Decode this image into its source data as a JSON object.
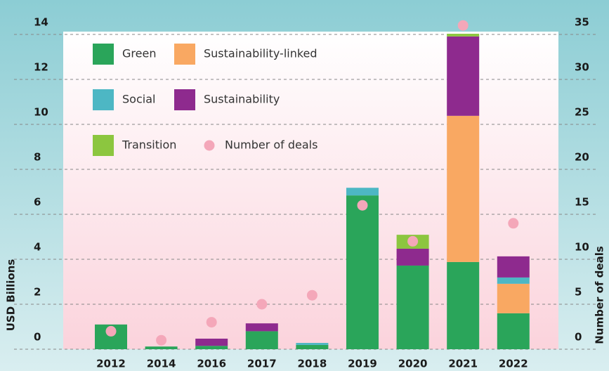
{
  "chart_data": {
    "type": "bar",
    "stacked": true,
    "categories": [
      "2012",
      "2014",
      "2016",
      "2017",
      "2018",
      "2019",
      "2020",
      "2021",
      "2022"
    ],
    "series": [
      {
        "name": "Green",
        "color": "#2aa55a",
        "values": [
          1.1,
          0.12,
          0.15,
          0.8,
          0.19,
          6.84,
          3.72,
          3.88,
          1.6
        ]
      },
      {
        "name": "Sustainability-linked",
        "color": "#f9a862",
        "values": [
          null,
          null,
          null,
          null,
          null,
          null,
          null,
          6.5,
          1.31
        ]
      },
      {
        "name": "Social",
        "color": "#4db7c4",
        "values": [
          null,
          null,
          null,
          null,
          0.09,
          0.34,
          null,
          null,
          0.28
        ]
      },
      {
        "name": "Sustainability",
        "color": "#8e2a8e",
        "values": [
          null,
          null,
          0.32,
          0.35,
          null,
          null,
          0.75,
          3.53,
          0.94
        ]
      },
      {
        "name": "Transition",
        "color": "#8cc63f",
        "values": [
          null,
          null,
          null,
          null,
          null,
          null,
          0.62,
          0.12,
          null
        ]
      },
      {
        "name": "Number of deals",
        "color": "#f4a7b9",
        "axis": "y2",
        "values": [
          2,
          1,
          3,
          5,
          6,
          16,
          12,
          36,
          14
        ]
      }
    ],
    "ylabel": "USD Billions",
    "y2label": "Number of deals",
    "ylim": [
      0,
      14
    ],
    "yticks": [
      0,
      2,
      4,
      6,
      8,
      10,
      12,
      14
    ],
    "y2lim": [
      0,
      35
    ],
    "y2ticks": [
      0,
      5,
      10,
      15,
      20,
      25,
      30,
      35
    ],
    "grid": true,
    "legend": "upper left"
  }
}
